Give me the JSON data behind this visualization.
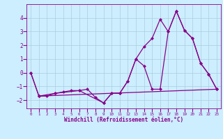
{
  "line1_x": [
    0,
    1,
    2,
    3,
    4,
    5,
    6,
    7,
    8,
    9,
    10,
    11,
    12,
    13,
    14,
    15,
    16,
    17,
    18,
    19,
    20,
    21,
    22,
    23
  ],
  "line1_y": [
    0.0,
    -1.7,
    -1.7,
    -1.5,
    -1.4,
    -1.3,
    -1.3,
    -1.2,
    -1.8,
    -2.2,
    -1.5,
    -1.5,
    -0.6,
    1.0,
    0.5,
    -1.2,
    -1.2,
    3.0,
    4.5,
    3.1,
    2.5,
    0.7,
    -0.1,
    -1.2
  ],
  "line2_x": [
    0,
    1,
    3,
    6,
    9,
    10,
    11,
    12,
    13,
    14,
    15,
    16,
    17,
    18,
    19,
    20,
    21,
    22,
    23
  ],
  "line2_y": [
    0.0,
    -1.7,
    -1.5,
    -1.3,
    -2.2,
    -1.5,
    -1.5,
    -0.6,
    1.0,
    1.9,
    2.5,
    3.9,
    3.0,
    4.5,
    3.1,
    2.5,
    0.7,
    -0.1,
    -1.2
  ],
  "line3_x": [
    1,
    23
  ],
  "line3_y": [
    -1.7,
    -1.2
  ],
  "color": "#880088",
  "bg_color": "#cceeff",
  "grid_color": "#aaccdd",
  "xlabel": "Windchill (Refroidissement éolien,°C)",
  "xlim": [
    -0.5,
    23.5
  ],
  "ylim": [
    -2.6,
    5.0
  ],
  "yticks": [
    -2,
    -1,
    0,
    1,
    2,
    3,
    4
  ],
  "xticks": [
    0,
    1,
    2,
    3,
    4,
    5,
    6,
    7,
    8,
    9,
    10,
    11,
    12,
    13,
    14,
    15,
    16,
    17,
    18,
    19,
    20,
    21,
    22,
    23
  ],
  "marker": "D",
  "markersize": 2.5,
  "linewidth": 0.9
}
